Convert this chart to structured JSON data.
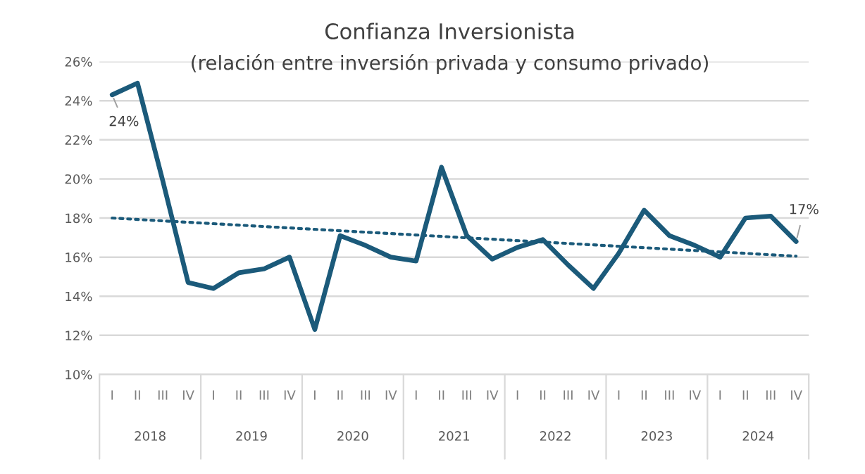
{
  "chart_data": {
    "type": "line",
    "title": "Confianza Inversionista",
    "subtitle": "(relación entre inversión privada y consumo privado)",
    "categories": [
      "I",
      "II",
      "III",
      "IV",
      "I",
      "II",
      "III",
      "IV",
      "I",
      "II",
      "III",
      "IV",
      "I",
      "II",
      "III",
      "IV",
      "I",
      "II",
      "III",
      "IV",
      "I",
      "II",
      "III",
      "IV",
      "I",
      "II",
      "III",
      "IV"
    ],
    "series": [
      {
        "color": "#1b5a7a",
        "values": [
          24.3,
          24.9,
          19.9,
          14.7,
          14.4,
          15.2,
          15.4,
          16.0,
          12.3,
          17.1,
          16.6,
          16.0,
          15.8,
          20.6,
          17.1,
          15.9,
          16.5,
          16.9,
          15.6,
          14.4,
          16.2,
          18.4,
          17.1,
          16.6,
          16.0,
          18.0,
          18.1,
          16.8
        ],
        "value_labels": [
          "24%",
          null,
          null,
          null,
          null,
          null,
          null,
          null,
          null,
          null,
          null,
          null,
          null,
          null,
          null,
          null,
          null,
          null,
          null,
          null,
          null,
          null,
          null,
          null,
          null,
          null,
          null,
          "17%"
        ]
      },
      {
        "type": "line",
        "color": "#1b5a7a",
        "line_style": "dotted",
        "values": [
          18.0,
          null,
          null,
          null,
          null,
          null,
          null,
          null,
          null,
          null,
          null,
          null,
          null,
          null,
          null,
          null,
          null,
          null,
          null,
          null,
          null,
          null,
          null,
          null,
          null,
          null,
          null,
          16.05
        ]
      }
    ],
    "annotations": [
      "2018",
      "2019",
      "2020",
      "2021",
      "2022",
      "2023",
      "2024"
    ],
    "ylim": [
      10,
      26
    ],
    "yticks": [
      {
        "value": 10,
        "label": "10%"
      },
      {
        "value": 12,
        "label": "12%"
      },
      {
        "value": 14,
        "label": "14%"
      },
      {
        "value": 16,
        "label": "16%"
      },
      {
        "value": 18,
        "label": "18%"
      },
      {
        "value": 20,
        "label": "20%"
      },
      {
        "value": 22,
        "label": "22%"
      },
      {
        "value": 24,
        "label": "24%"
      },
      {
        "value": 26,
        "label": "26%"
      }
    ],
    "grid": "y",
    "legend": false,
    "line_style": "solid",
    "marker": "none"
  }
}
